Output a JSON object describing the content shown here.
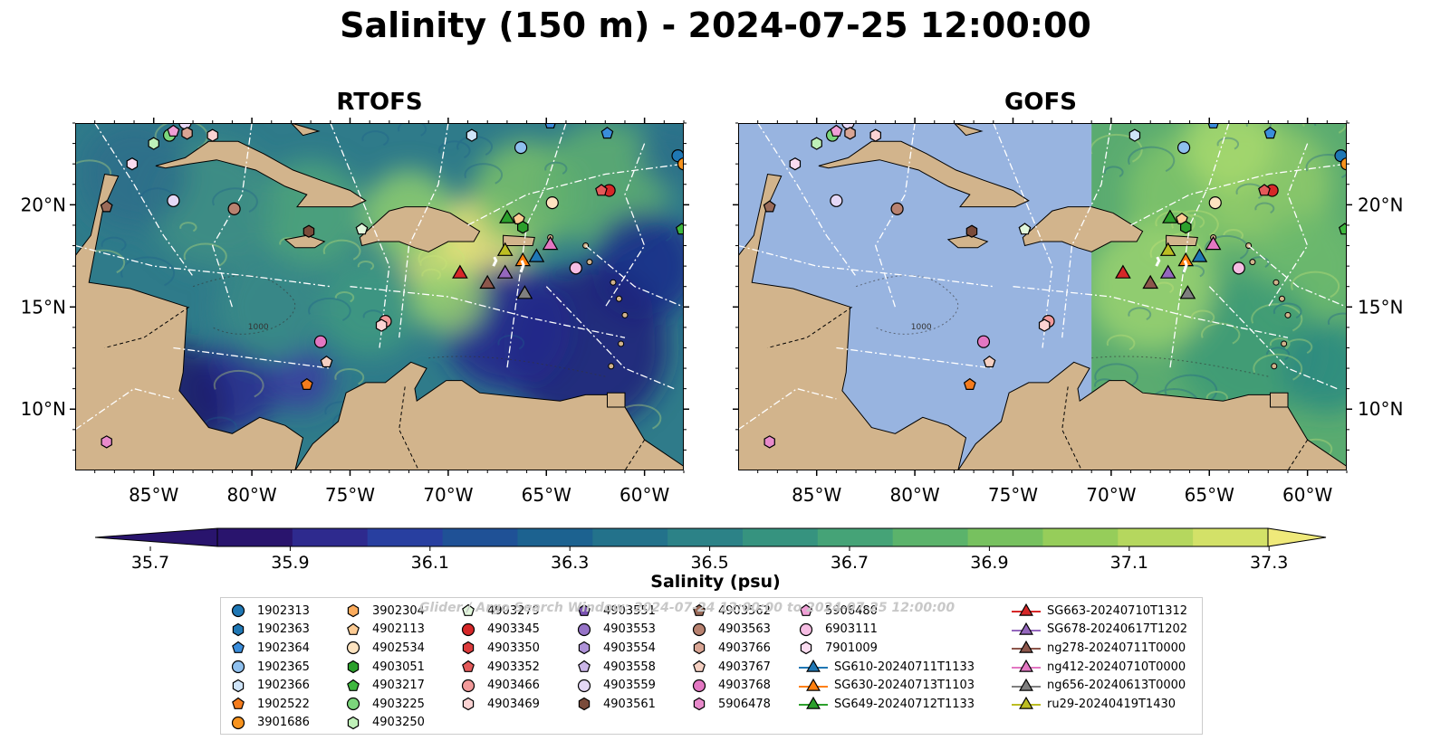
{
  "figure": {
    "title": "Salinity (150 m) - 2024-07-25 12:00:00",
    "watermark": "Glider / Argo Search Window: 2024-07-24 12:00:00 to 2024-07-25 12:00:00"
  },
  "maps": [
    {
      "title": "RTOFS",
      "model_coverage": "full"
    },
    {
      "title": "GOFS",
      "model_coverage": "east-of-71W"
    }
  ],
  "axes": {
    "x_ticks": [
      "85°W",
      "80°W",
      "75°W",
      "70°W",
      "65°W",
      "60°W"
    ],
    "y_ticks": [
      "20°N",
      "15°N",
      "10°N"
    ],
    "lon_range": [
      -89,
      -58
    ],
    "lat_range": [
      7,
      24
    ],
    "contour_label": "1000"
  },
  "colorbar": {
    "label": "Salinity (psu)",
    "ticks": [
      "35.7",
      "35.9",
      "36.1",
      "36.3",
      "36.5",
      "36.7",
      "36.9",
      "37.1",
      "37.3"
    ],
    "colormap": "haline",
    "extend": "both"
  },
  "colors": {
    "land": "#d2b48c",
    "no_data_water": "#98b4e0",
    "grid_lines": "#ffffff"
  },
  "legend": {
    "columns": [
      [
        {
          "label": "1902313",
          "marker": "circle",
          "color": "#1f77b4"
        },
        {
          "label": "1902363",
          "marker": "hexagon",
          "color": "#1f77b4"
        },
        {
          "label": "1902364",
          "marker": "pentagon",
          "color": "#3a8ddb"
        },
        {
          "label": "1902365",
          "marker": "circle",
          "color": "#8fc0ee"
        },
        {
          "label": "1902366",
          "marker": "hexagon",
          "color": "#cfe4f8"
        },
        {
          "label": "1902522",
          "marker": "pentagon",
          "color": "#f57c1d"
        },
        {
          "label": "3901686",
          "marker": "circle",
          "color": "#f7931e"
        }
      ],
      [
        {
          "label": "3902304",
          "marker": "hexagon",
          "color": "#fbab5c"
        },
        {
          "label": "4902113",
          "marker": "pentagon",
          "color": "#fdcb93"
        },
        {
          "label": "4902534",
          "marker": "circle",
          "color": "#fde3c0"
        },
        {
          "label": "4903051",
          "marker": "hexagon",
          "color": "#2ca02c"
        },
        {
          "label": "4903217",
          "marker": "pentagon",
          "color": "#3eb73e"
        },
        {
          "label": "4903225",
          "marker": "circle",
          "color": "#7cd67c"
        },
        {
          "label": "4903250",
          "marker": "hexagon",
          "color": "#bff0b8"
        }
      ],
      [
        {
          "label": "4903279",
          "marker": "pentagon",
          "color": "#e2f7dc"
        },
        {
          "label": "4903345",
          "marker": "circle",
          "color": "#d62728"
        },
        {
          "label": "4903350",
          "marker": "hexagon",
          "color": "#dc3b3c"
        },
        {
          "label": "4903352",
          "marker": "pentagon",
          "color": "#e45a5a"
        },
        {
          "label": "4903466",
          "marker": "circle",
          "color": "#f29a9a"
        },
        {
          "label": "4903469",
          "marker": "hexagon",
          "color": "#fbd3d3"
        }
      ],
      [
        {
          "label": "4903551",
          "marker": "pentagon",
          "color": "#7a52b2"
        },
        {
          "label": "4903553",
          "marker": "circle",
          "color": "#9673c7"
        },
        {
          "label": "4903554",
          "marker": "hexagon",
          "color": "#ae92d8"
        },
        {
          "label": "4903558",
          "marker": "pentagon",
          "color": "#cbb6e8"
        },
        {
          "label": "4903559",
          "marker": "circle",
          "color": "#e5d8f6"
        },
        {
          "label": "4903561",
          "marker": "hexagon",
          "color": "#7a4b3a"
        }
      ],
      [
        {
          "label": "4903562",
          "marker": "pentagon",
          "color": "#9a6a58"
        },
        {
          "label": "4903563",
          "marker": "circle",
          "color": "#b88270"
        },
        {
          "label": "4903766",
          "marker": "hexagon",
          "color": "#d9a594"
        },
        {
          "label": "4903767",
          "marker": "pentagon",
          "color": "#f5d0c2"
        },
        {
          "label": "4903768",
          "marker": "circle",
          "color": "#e377c2"
        },
        {
          "label": "5906478",
          "marker": "hexagon",
          "color": "#e88acb"
        }
      ],
      [
        {
          "label": "5906480",
          "marker": "pentagon",
          "color": "#f09fd6"
        },
        {
          "label": "6903111",
          "marker": "circle",
          "color": "#f6bde3"
        },
        {
          "label": "7901009",
          "marker": "hexagon",
          "color": "#fbdcf0"
        },
        {
          "label": "SG610-20240711T1133",
          "marker": "triangle",
          "color": "#1f77b4"
        },
        {
          "label": "SG630-20240713T1103",
          "marker": "triangle",
          "color": "#ff7f0e"
        },
        {
          "label": "SG649-20240712T1133",
          "marker": "triangle",
          "color": "#2ca02c"
        }
      ],
      [
        {
          "label": "SG663-20240710T1312",
          "marker": "triangle",
          "color": "#d62728"
        },
        {
          "label": "SG678-20240617T1202",
          "marker": "triangle",
          "color": "#9467bd"
        },
        {
          "label": "ng278-20240711T0000",
          "marker": "triangle",
          "color": "#8c564b"
        },
        {
          "label": "ng412-20240710T0000",
          "marker": "triangle",
          "color": "#e377c2"
        },
        {
          "label": "ng656-20240613T0000",
          "marker": "triangle",
          "color": "#7f7f7f"
        },
        {
          "label": "ru29-20240419T1430",
          "marker": "triangle",
          "color": "#bcbd22"
        }
      ]
    ]
  },
  "floats": [
    {
      "id": "1902313",
      "lon": -58.3,
      "lat": 22.4
    },
    {
      "id": "1902364",
      "lon": -64.8,
      "lat": 24.0
    },
    {
      "id": "1902364",
      "lon": -61.9,
      "lat": 23.5
    },
    {
      "id": "1902365",
      "lon": -66.3,
      "lat": 22.8
    },
    {
      "id": "1902366",
      "lon": -68.8,
      "lat": 23.4
    },
    {
      "id": "3901686",
      "lon": -58.0,
      "lat": 22.0
    },
    {
      "id": "1902522",
      "lon": -77.2,
      "lat": 11.2
    },
    {
      "id": "4902113",
      "lon": -66.4,
      "lat": 19.3
    },
    {
      "id": "4902534",
      "lon": -64.7,
      "lat": 20.1
    },
    {
      "id": "4903051",
      "lon": -66.2,
      "lat": 18.9
    },
    {
      "id": "4903217",
      "lon": -58.1,
      "lat": 18.8
    },
    {
      "id": "4903225",
      "lon": -84.2,
      "lat": 23.4
    },
    {
      "id": "4903250",
      "lon": -85.0,
      "lat": 23.0
    },
    {
      "id": "4903279",
      "lon": -74.4,
      "lat": 18.8
    },
    {
      "id": "4903345",
      "lon": -61.8,
      "lat": 20.7
    },
    {
      "id": "4903352",
      "lon": -62.2,
      "lat": 20.7
    },
    {
      "id": "4903466",
      "lon": -73.2,
      "lat": 14.3
    },
    {
      "id": "4903469",
      "lon": -73.4,
      "lat": 14.1
    },
    {
      "id": "4903469",
      "lon": -82.0,
      "lat": 23.4
    },
    {
      "id": "4903559",
      "lon": -83.4,
      "lat": 24.0
    },
    {
      "id": "4903559",
      "lon": -84.0,
      "lat": 20.2
    },
    {
      "id": "4903561",
      "lon": -77.1,
      "lat": 18.7
    },
    {
      "id": "4903562",
      "lon": -87.4,
      "lat": 19.9
    },
    {
      "id": "4903563",
      "lon": -80.9,
      "lat": 19.8
    },
    {
      "id": "4903766",
      "lon": -83.3,
      "lat": 23.5
    },
    {
      "id": "4903767",
      "lon": -76.2,
      "lat": 12.3
    },
    {
      "id": "4903768",
      "lon": -76.5,
      "lat": 13.3
    },
    {
      "id": "5906478",
      "lon": -87.4,
      "lat": 8.4
    },
    {
      "id": "5906480",
      "lon": -84.0,
      "lat": 23.6
    },
    {
      "id": "6903111",
      "lon": -63.5,
      "lat": 16.9
    },
    {
      "id": "7901009",
      "lon": -86.1,
      "lat": 22.0
    }
  ],
  "gliders": [
    {
      "id": "SG610-20240711T1133",
      "lon": -65.5,
      "lat": 17.5
    },
    {
      "id": "SG630-20240713T1103",
      "lon": -66.2,
      "lat": 17.3
    },
    {
      "id": "SG649-20240712T1133",
      "lon": -67.0,
      "lat": 19.4
    },
    {
      "id": "SG663-20240710T1312",
      "lon": -69.4,
      "lat": 16.7
    },
    {
      "id": "SG678-20240617T1202",
      "lon": -67.1,
      "lat": 16.7
    },
    {
      "id": "ng278-20240711T0000",
      "lon": -68.0,
      "lat": 16.2
    },
    {
      "id": "ng412-20240710T0000",
      "lon": -64.8,
      "lat": 18.1
    },
    {
      "id": "ng656-20240613T0000",
      "lon": -66.1,
      "lat": 15.7
    },
    {
      "id": "ru29-20240419T1430",
      "lon": -67.1,
      "lat": 17.8
    }
  ]
}
